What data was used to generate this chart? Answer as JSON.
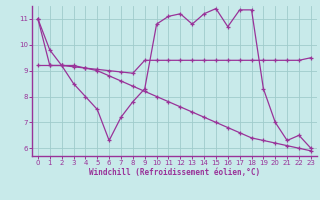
{
  "background_color": "#c8eaea",
  "grid_color": "#a0cccc",
  "line_color": "#993399",
  "xlabel": "Windchill (Refroidissement éolien,°C)",
  "xlim": [
    -0.5,
    23.5
  ],
  "ylim": [
    5.7,
    11.5
  ],
  "yticks": [
    6,
    7,
    8,
    9,
    10,
    11
  ],
  "xticks": [
    0,
    1,
    2,
    3,
    4,
    5,
    6,
    7,
    8,
    9,
    10,
    11,
    12,
    13,
    14,
    15,
    16,
    17,
    18,
    19,
    20,
    21,
    22,
    23
  ],
  "line1_x": [
    0,
    1,
    2,
    3,
    4,
    5,
    6,
    7,
    8,
    9,
    10,
    11,
    12,
    13,
    14,
    15,
    16,
    17,
    18,
    19,
    20,
    21,
    22,
    23
  ],
  "line1_y": [
    11.0,
    9.8,
    9.2,
    8.5,
    8.0,
    7.5,
    6.3,
    7.2,
    7.8,
    8.3,
    10.8,
    11.1,
    11.2,
    10.8,
    11.2,
    11.4,
    10.7,
    11.35,
    11.35,
    8.3,
    7.0,
    6.3,
    6.5,
    6.0
  ],
  "line2_x": [
    0,
    1,
    2,
    3,
    4,
    5,
    6,
    7,
    8,
    9,
    10,
    11,
    12,
    13,
    14,
    15,
    16,
    17,
    18,
    19,
    20,
    21,
    22,
    23
  ],
  "line2_y": [
    9.2,
    9.2,
    9.2,
    9.15,
    9.1,
    9.05,
    9.0,
    8.95,
    8.9,
    9.4,
    9.4,
    9.4,
    9.4,
    9.4,
    9.4,
    9.4,
    9.4,
    9.4,
    9.4,
    9.4,
    9.4,
    9.4,
    9.4,
    9.5
  ],
  "line3_x": [
    0,
    1,
    2,
    3,
    4,
    5,
    6,
    7,
    8,
    9,
    10,
    11,
    12,
    13,
    14,
    15,
    16,
    17,
    18,
    19,
    20,
    21,
    22,
    23
  ],
  "line3_y": [
    11.0,
    9.2,
    9.2,
    9.2,
    9.1,
    9.0,
    8.8,
    8.6,
    8.4,
    8.2,
    8.0,
    7.8,
    7.6,
    7.4,
    7.2,
    7.0,
    6.8,
    6.6,
    6.4,
    6.3,
    6.2,
    6.1,
    6.0,
    5.9
  ]
}
